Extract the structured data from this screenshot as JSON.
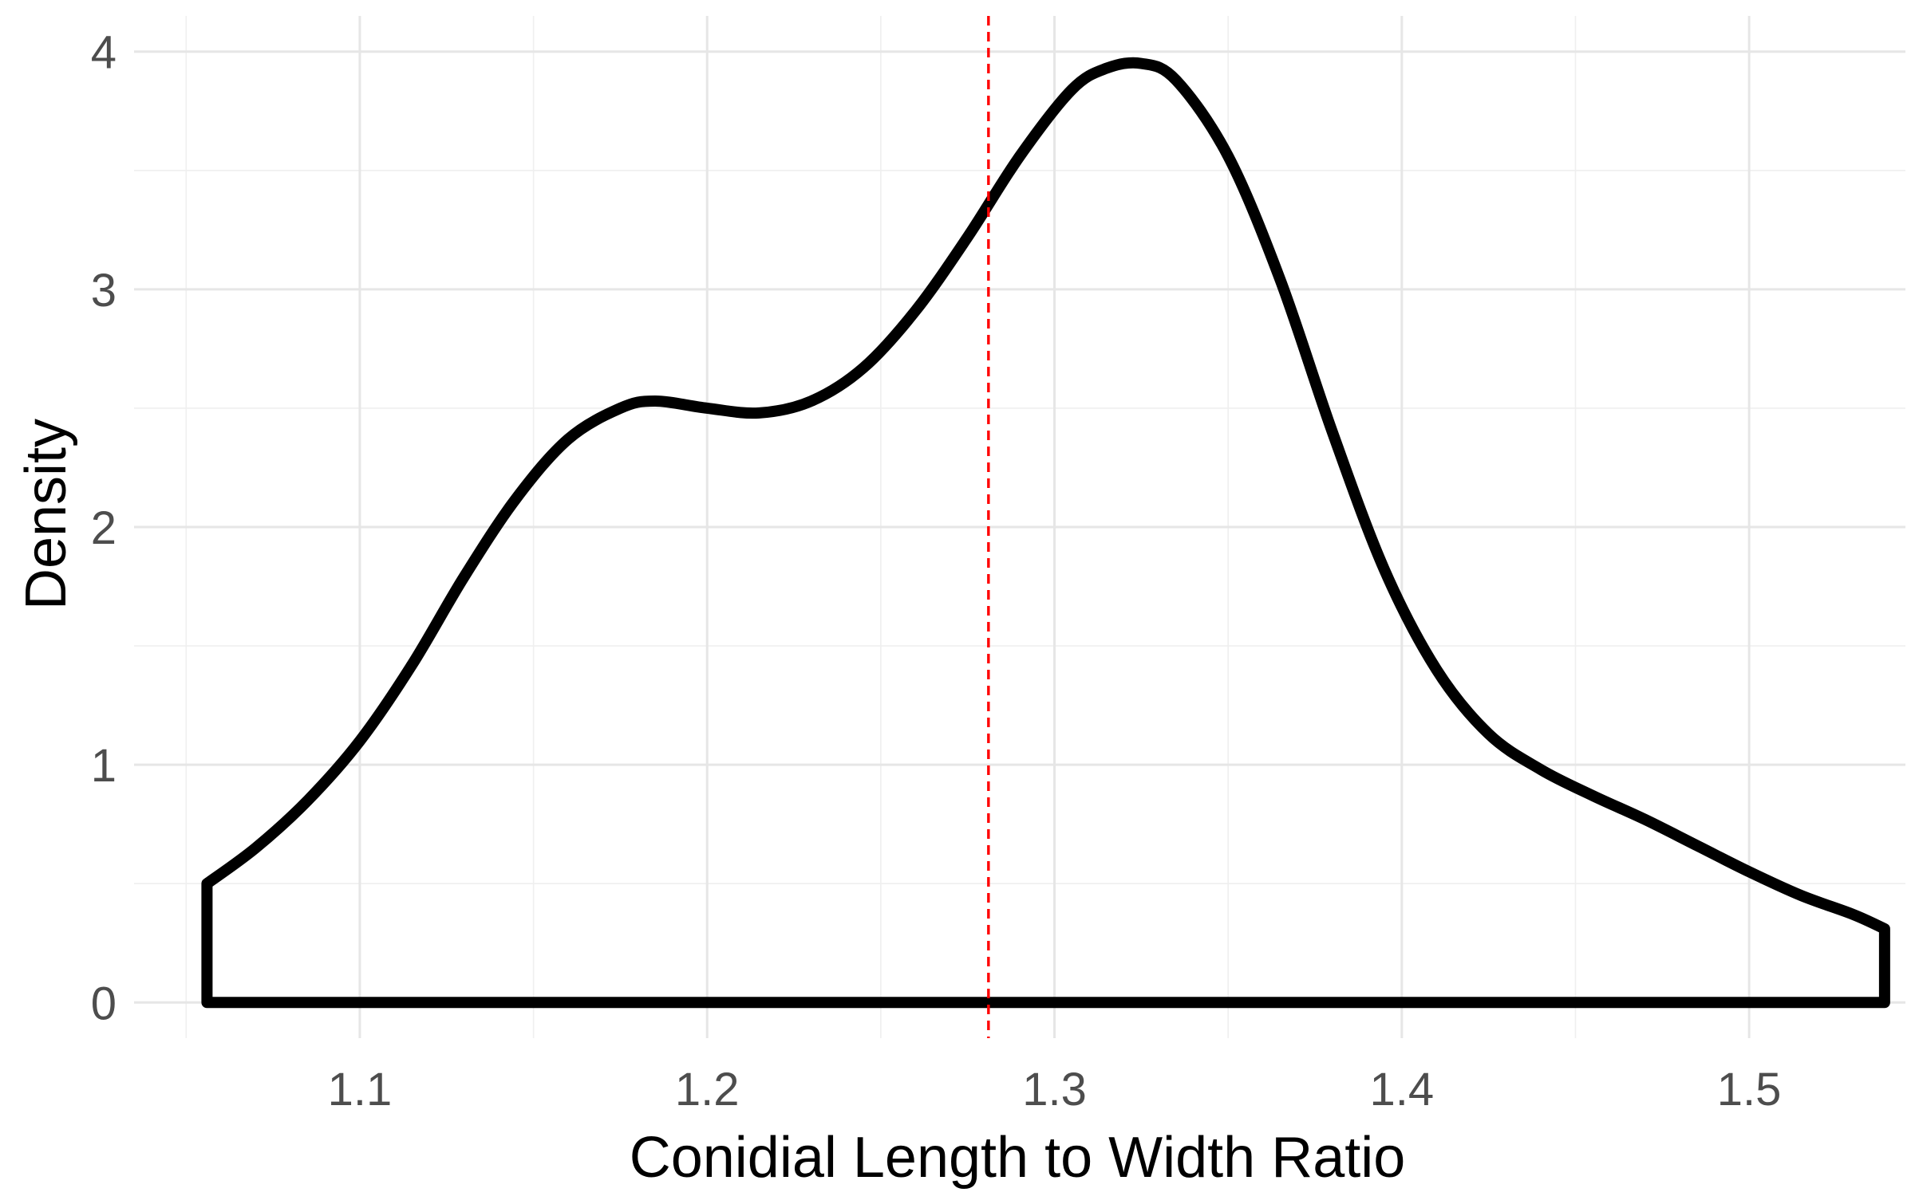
{
  "chart_data": {
    "type": "area",
    "title": "",
    "xlabel": "Conidial Length to Width Ratio",
    "ylabel": "Density",
    "xlim": [
      1.035,
      1.545
    ],
    "ylim": [
      -0.15,
      4.15
    ],
    "x_ticks": [
      1.1,
      1.2,
      1.3,
      1.4,
      1.5
    ],
    "x_tick_labels": [
      "1.1",
      "1.2",
      "1.3",
      "1.4",
      "1.5"
    ],
    "y_ticks": [
      0,
      1,
      2,
      3,
      4
    ],
    "y_tick_labels": [
      "0",
      "1",
      "2",
      "3",
      "4"
    ],
    "grid": true,
    "legend": "none",
    "series": [
      {
        "color": "#000000",
        "fill": "none",
        "x": [
          1.056,
          1.07,
          1.085,
          1.1,
          1.115,
          1.13,
          1.145,
          1.16,
          1.175,
          1.185,
          1.2,
          1.215,
          1.23,
          1.245,
          1.26,
          1.275,
          1.29,
          1.305,
          1.315,
          1.325,
          1.335,
          1.35,
          1.365,
          1.38,
          1.395,
          1.41,
          1.425,
          1.44,
          1.455,
          1.47,
          1.485,
          1.5,
          1.515,
          1.53,
          1.539
        ],
        "y": [
          0.5,
          0.65,
          0.85,
          1.1,
          1.42,
          1.79,
          2.12,
          2.37,
          2.5,
          2.53,
          2.5,
          2.48,
          2.53,
          2.67,
          2.91,
          3.22,
          3.56,
          3.84,
          3.93,
          3.95,
          3.88,
          3.56,
          3.04,
          2.4,
          1.82,
          1.4,
          1.13,
          0.98,
          0.87,
          0.77,
          0.66,
          0.55,
          0.45,
          0.37,
          0.31
        ]
      }
    ],
    "reference_line": {
      "orientation": "vertical",
      "x": 1.281,
      "color": "#ff0000",
      "style": "dashed"
    }
  }
}
